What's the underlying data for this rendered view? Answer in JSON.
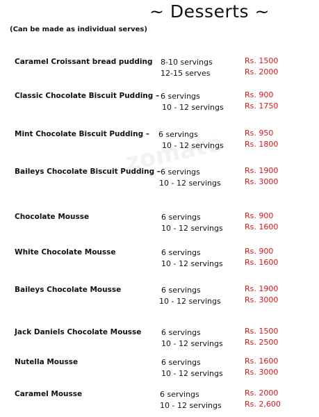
{
  "header": {
    "title": "~ Desserts ~",
    "subtitle": "(Can be made as individual serves)"
  },
  "watermark": "zomato",
  "items": [
    {
      "name": "Caramel Croissant bread pudding",
      "options": [
        {
          "serving": "8-10 servings",
          "price": "Rs. 1500"
        },
        {
          "serving": "12-15 serves",
          "price": "Rs. 2000"
        }
      ]
    },
    {
      "name": "Classic Chocolate Biscuit Pudding –",
      "options": [
        {
          "serving": "6 servings",
          "price": "Rs. 900"
        },
        {
          "serving": "10 - 12 servings",
          "price": "Rs. 1750"
        }
      ]
    },
    {
      "name": "Mint Chocolate Biscuit Pudding  –",
      "options": [
        {
          "serving": "6 servings",
          "price": "Rs. 950"
        },
        {
          "serving": "10 - 12 servings",
          "price": "Rs. 1800"
        }
      ]
    },
    {
      "name": "Baileys Chocolate Biscuit Pudding –",
      "options": [
        {
          "serving": "6 servings",
          "price": "Rs. 1900"
        },
        {
          "serving": "10 - 12 servings",
          "price": "Rs. 3000"
        }
      ]
    },
    {
      "name": "Chocolate Mousse",
      "options": [
        {
          "serving": "6 servings",
          "price": "Rs. 900"
        },
        {
          "serving": "10 - 12 servings",
          "price": "Rs. 1600"
        }
      ]
    },
    {
      "name": "White Chocolate Mousse",
      "options": [
        {
          "serving": "6 servings",
          "price": "Rs. 900"
        },
        {
          "serving": "10 - 12 servings",
          "price": "Rs. 1600"
        }
      ]
    },
    {
      "name": "Baileys Chocolate Mousse",
      "options": [
        {
          "serving": "6 servings",
          "price": "Rs. 1900"
        },
        {
          "serving": "10 - 12 servings",
          "price": "Rs. 3000"
        }
      ]
    },
    {
      "name": "Jack Daniels Chocolate Mousse",
      "options": [
        {
          "serving": "6 servings",
          "price": "Rs. 1500"
        },
        {
          "serving": "10 - 12 servings",
          "price": "Rs. 2500"
        }
      ]
    },
    {
      "name": "Nutella Mousse",
      "options": [
        {
          "serving": "6 servings",
          "price": "Rs. 1600"
        },
        {
          "serving": "10 - 12 servings",
          "price": "Rs. 3000"
        }
      ]
    },
    {
      "name": "Caramel Mousse",
      "options": [
        {
          "serving": "6 servings",
          "price": "Rs. 2000"
        },
        {
          "serving": "10 - 12 servings",
          "price": "Rs. 2,600"
        }
      ]
    }
  ]
}
